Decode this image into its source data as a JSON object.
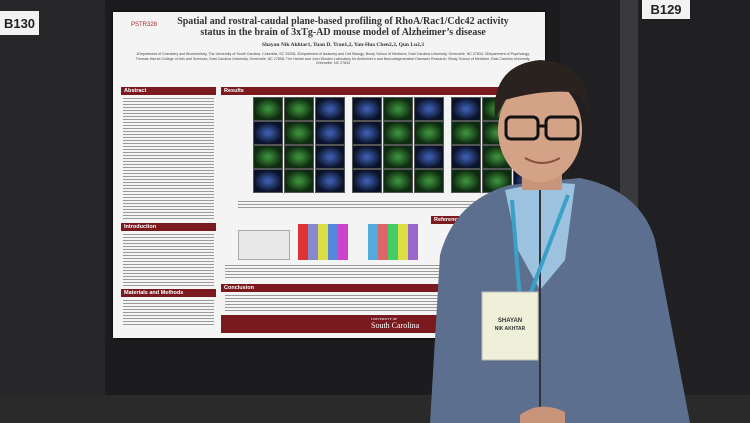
{
  "booths": {
    "left": "B130",
    "right": "B129"
  },
  "poster": {
    "id": "PSTR328",
    "title": "Spatial and rostral-caudal plane-based profiling of RhoA/Rac1/Cdc42 activity status in the brain of 3xTg-AD mouse model of Alzheimer’s disease",
    "authors": "Shayan Nik Akhtar1, Tuan D. Tran1,2, Yan-Hua Chen2,3, Qun Lu2,3",
    "affiliations": "1Department of Chemistry and Biochemistry, The University of South Carolina, Columbia, SC 29208; 2Department of Anatomy and Cell Biology, Brody School of Medicine, East Carolina University, Greenville, NC 27834; 3Department of Psychology, Thomas Harriot College of Arts and Sciences, East Carolina University, Greenville, NC 27858; The Harriet and John Wooten Laboratory for Alzheimer’s and Neurodegenerative Diseases Research, Brody School of Medicine, East Carolina University, Greenville, NC 27834",
    "sections": {
      "abstract": "Abstract",
      "results": "Results",
      "introduction": "Introduction",
      "methods": "Materials and Methods",
      "conclusion": "Conclusion",
      "references": "References"
    },
    "logo": {
      "line1": "UNIVERSITY OF",
      "line2": "South Carolina"
    }
  },
  "badge": {
    "name": "SHAYAN",
    "surname": "NIK AKHTAR"
  }
}
